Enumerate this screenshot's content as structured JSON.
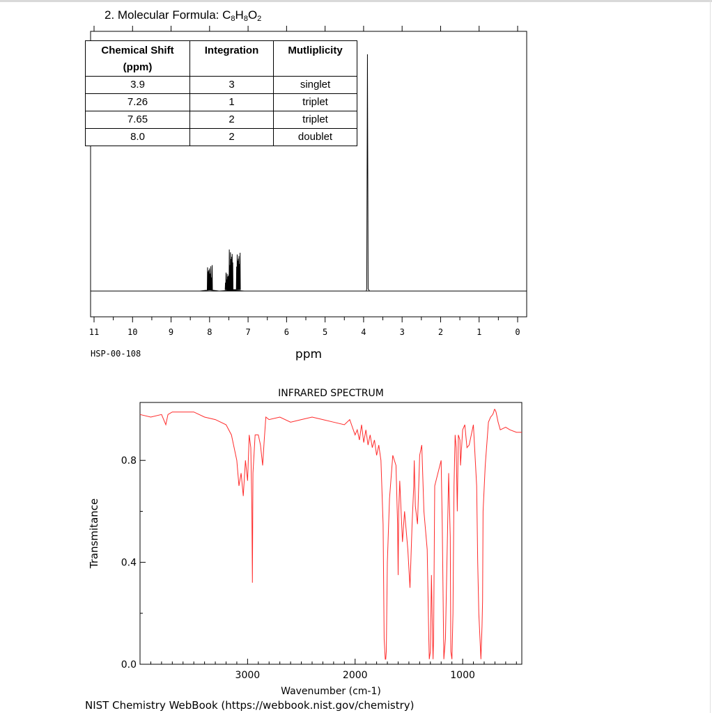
{
  "question": {
    "number": "2.",
    "label": "Molecular Formula: C",
    "formula_parts": [
      {
        "t": "C",
        "sub": false
      },
      {
        "t": "8",
        "sub": true
      },
      {
        "t": "H",
        "sub": false
      },
      {
        "t": "8",
        "sub": true
      },
      {
        "t": "O",
        "sub": false
      },
      {
        "t": "2",
        "sub": true
      }
    ],
    "prefix": "2.  Molecular Formula: "
  },
  "nmr_table": {
    "headers": [
      "Chemical Shift (ppm)",
      "Integration",
      "Mutliplicity"
    ],
    "rows": [
      [
        "3.9",
        "3",
        "singlet"
      ],
      [
        "7.26",
        "1",
        "triplet"
      ],
      [
        "7.65",
        "2",
        "triplet"
      ],
      [
        "8.0",
        "2",
        "doublet"
      ]
    ]
  },
  "footer": "NIST Chemistry WebBook (https://webbook.nist.gov/chemistry)",
  "chart_data": [
    {
      "type": "line",
      "title": "",
      "xlabel": "ppm",
      "ylabel": "",
      "annotation": "HSP-00-108",
      "xlim": [
        11,
        0
      ],
      "x_reversed": true,
      "x_ticks": [
        "11",
        "10",
        "9",
        "8",
        "7",
        "6",
        "5",
        "4",
        "3",
        "2",
        "1",
        "0"
      ],
      "peaks": [
        {
          "shift": 3.9,
          "relative_height": 1.0,
          "multiplicity": "singlet"
        },
        {
          "shift": 7.26,
          "relative_height": 0.17,
          "multiplicity": "multiplet"
        },
        {
          "shift": 7.45,
          "relative_height": 0.18,
          "multiplicity": "multiplet"
        },
        {
          "shift": 7.55,
          "relative_height": 0.08,
          "multiplicity": "multiplet"
        },
        {
          "shift": 8.0,
          "relative_height": 0.11,
          "multiplicity": "doublet"
        }
      ],
      "line_color": "#000000"
    },
    {
      "type": "line",
      "title": "INFRARED SPECTRUM",
      "xlabel": "Wavenumber (cm-1)",
      "ylabel": "Transmitance",
      "xlim": [
        4000,
        450
      ],
      "x_reversed": true,
      "ylim": [
        0,
        1.0
      ],
      "x_ticks": [
        "3000",
        "2000",
        "1000"
      ],
      "y_ticks": [
        "0.0",
        "0.4",
        "0.8"
      ],
      "line_color": "#ff2a2a",
      "series": [
        {
          "x": [
            4000,
            3900,
            3800,
            3760,
            3740,
            3700,
            3600,
            3500,
            3400,
            3300,
            3200,
            3150,
            3100,
            3080,
            3060,
            3040,
            3020,
            3000,
            2985,
            2970,
            2960,
            2955,
            2950,
            2930,
            2900,
            2880,
            2860,
            2845,
            2830,
            2800,
            2700,
            2600,
            2500,
            2400,
            2300,
            2200,
            2100,
            2050,
            2000,
            1980,
            1960,
            1940,
            1920,
            1900,
            1880,
            1860,
            1840,
            1820,
            1800,
            1780,
            1760,
            1740,
            1730,
            1720,
            1715,
            1710,
            1700,
            1680,
            1650,
            1620,
            1605,
            1600,
            1595,
            1585,
            1560,
            1540,
            1510,
            1490,
            1470,
            1455,
            1450,
            1440,
            1420,
            1400,
            1380,
            1360,
            1330,
            1315,
            1310,
            1300,
            1290,
            1280,
            1275,
            1270,
            1260,
            1200,
            1190,
            1180,
            1175,
            1160,
            1130,
            1115,
            1110,
            1100,
            1090,
            1080,
            1070,
            1060,
            1050,
            1040,
            1025,
            1020,
            1000,
            980,
            960,
            940,
            900,
            870,
            860,
            850,
            830,
            820,
            815,
            810,
            790,
            760,
            740,
            720,
            711,
            705,
            700,
            690,
            680,
            670,
            650,
            600,
            560,
            500,
            450
          ],
          "y": [
            0.98,
            0.97,
            0.98,
            0.94,
            0.98,
            0.99,
            0.99,
            0.99,
            0.97,
            0.96,
            0.94,
            0.9,
            0.8,
            0.7,
            0.75,
            0.66,
            0.8,
            0.72,
            0.9,
            0.85,
            0.62,
            0.32,
            0.75,
            0.9,
            0.9,
            0.86,
            0.78,
            0.88,
            0.97,
            0.96,
            0.97,
            0.95,
            0.96,
            0.97,
            0.96,
            0.95,
            0.94,
            0.96,
            0.9,
            0.92,
            0.88,
            0.94,
            0.87,
            0.92,
            0.86,
            0.9,
            0.85,
            0.88,
            0.82,
            0.86,
            0.8,
            0.55,
            0.1,
            0.02,
            0.02,
            0.05,
            0.4,
            0.65,
            0.82,
            0.78,
            0.55,
            0.35,
            0.6,
            0.72,
            0.48,
            0.6,
            0.45,
            0.3,
            0.55,
            0.7,
            0.8,
            0.62,
            0.55,
            0.82,
            0.86,
            0.6,
            0.45,
            0.1,
            0.02,
            0.05,
            0.35,
            0.1,
            0.02,
            0.1,
            0.7,
            0.8,
            0.55,
            0.2,
            0.02,
            0.1,
            0.75,
            0.5,
            0.05,
            0.02,
            0.2,
            0.7,
            0.9,
            0.85,
            0.6,
            0.9,
            0.88,
            0.78,
            0.92,
            0.94,
            0.85,
            0.86,
            0.94,
            0.7,
            0.4,
            0.2,
            0.02,
            0.15,
            0.25,
            0.6,
            0.78,
            0.95,
            0.97,
            0.98,
            0.99,
            1.0,
            1.0,
            0.99,
            0.97,
            0.95,
            0.92,
            0.93,
            0.92,
            0.91,
            0.91
          ]
        }
      ]
    }
  ]
}
